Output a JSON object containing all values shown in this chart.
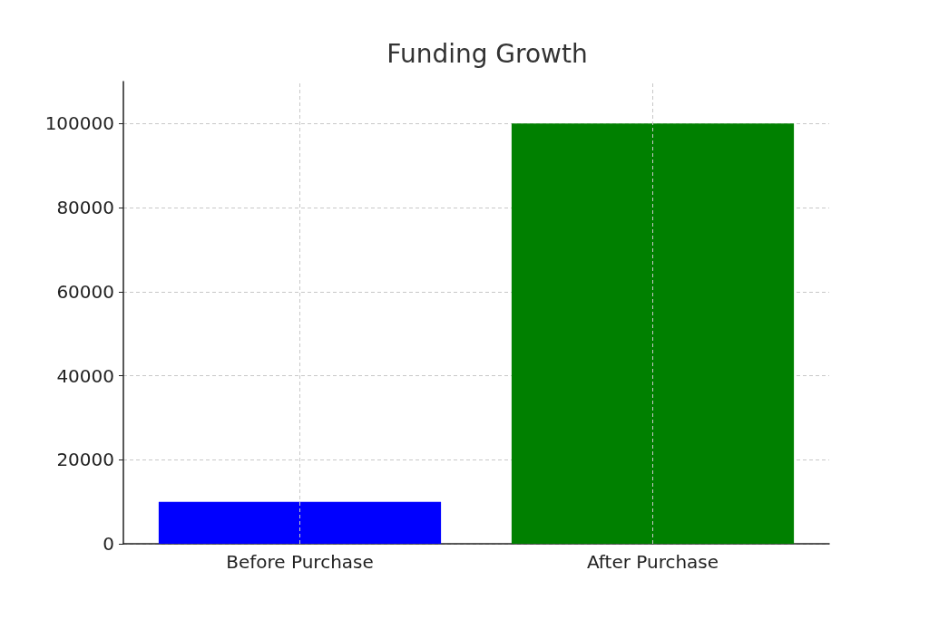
{
  "chart_data": {
    "type": "bar",
    "title": "Funding Growth",
    "categories": [
      "Before Purchase",
      "After Purchase"
    ],
    "values": [
      10000,
      100000
    ],
    "colors": [
      "#0000ff",
      "#008000"
    ],
    "ylim": [
      0,
      110000
    ],
    "yticks": [
      0,
      20000,
      40000,
      60000,
      80000,
      100000
    ],
    "grid": true
  }
}
